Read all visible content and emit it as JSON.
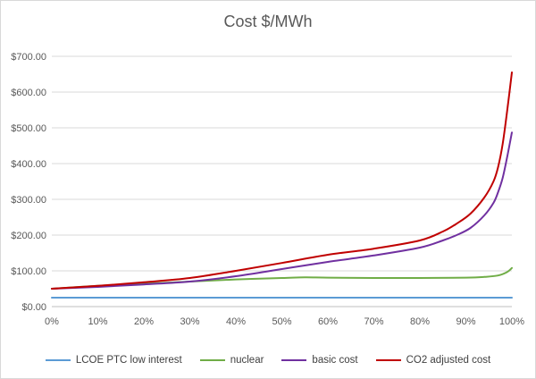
{
  "chart_data": {
    "type": "line",
    "title": "Cost $/MWh",
    "xlabel": "",
    "ylabel": "",
    "ylim": [
      0,
      700
    ],
    "xlim": [
      0,
      100
    ],
    "y_ticks": [
      "$0.00",
      "$100.00",
      "$200.00",
      "$300.00",
      "$400.00",
      "$500.00",
      "$600.00",
      "$700.00"
    ],
    "y_tick_values": [
      0,
      100,
      200,
      300,
      400,
      500,
      600,
      700
    ],
    "x_ticks": [
      "0%",
      "10%",
      "20%",
      "30%",
      "40%",
      "50%",
      "60%",
      "70%",
      "80%",
      "90%",
      "100%"
    ],
    "x_tick_values": [
      0,
      10,
      20,
      30,
      40,
      50,
      60,
      70,
      80,
      90,
      100
    ],
    "grid": "horizontal",
    "legend_position": "bottom",
    "series": [
      {
        "name": "LCOE PTC low interest",
        "color": "#5b9bd5",
        "points": [
          [
            0,
            25
          ],
          [
            10,
            25
          ],
          [
            20,
            25
          ],
          [
            30,
            25
          ],
          [
            40,
            25
          ],
          [
            50,
            25
          ],
          [
            60,
            25
          ],
          [
            70,
            25
          ],
          [
            80,
            25
          ],
          [
            90,
            25
          ],
          [
            100,
            25
          ]
        ]
      },
      {
        "name": "nuclear",
        "color": "#70ad47",
        "points": [
          [
            0,
            50
          ],
          [
            10,
            58
          ],
          [
            20,
            64
          ],
          [
            30,
            70
          ],
          [
            40,
            76
          ],
          [
            50,
            80
          ],
          [
            55,
            82
          ],
          [
            60,
            81
          ],
          [
            70,
            80
          ],
          [
            80,
            80
          ],
          [
            90,
            81
          ],
          [
            94,
            83
          ],
          [
            97,
            87
          ],
          [
            99,
            97
          ],
          [
            100,
            108
          ]
        ]
      },
      {
        "name": "basic cost",
        "color": "#7030a0",
        "points": [
          [
            0,
            50
          ],
          [
            10,
            55
          ],
          [
            20,
            62
          ],
          [
            30,
            70
          ],
          [
            40,
            85
          ],
          [
            50,
            105
          ],
          [
            60,
            125
          ],
          [
            70,
            143
          ],
          [
            80,
            165
          ],
          [
            85,
            185
          ],
          [
            88,
            200
          ],
          [
            91,
            220
          ],
          [
            94,
            255
          ],
          [
            96,
            290
          ],
          [
            97,
            320
          ],
          [
            98,
            360
          ],
          [
            99,
            420
          ],
          [
            100,
            487
          ]
        ]
      },
      {
        "name": "CO2 adjusted cost",
        "color": "#c00000",
        "points": [
          [
            0,
            50
          ],
          [
            10,
            58
          ],
          [
            20,
            68
          ],
          [
            30,
            80
          ],
          [
            40,
            100
          ],
          [
            50,
            122
          ],
          [
            60,
            145
          ],
          [
            70,
            162
          ],
          [
            80,
            185
          ],
          [
            85,
            210
          ],
          [
            88,
            232
          ],
          [
            91,
            260
          ],
          [
            94,
            305
          ],
          [
            96,
            350
          ],
          [
            97,
            390
          ],
          [
            98,
            455
          ],
          [
            99,
            550
          ],
          [
            100,
            655
          ]
        ]
      }
    ]
  }
}
